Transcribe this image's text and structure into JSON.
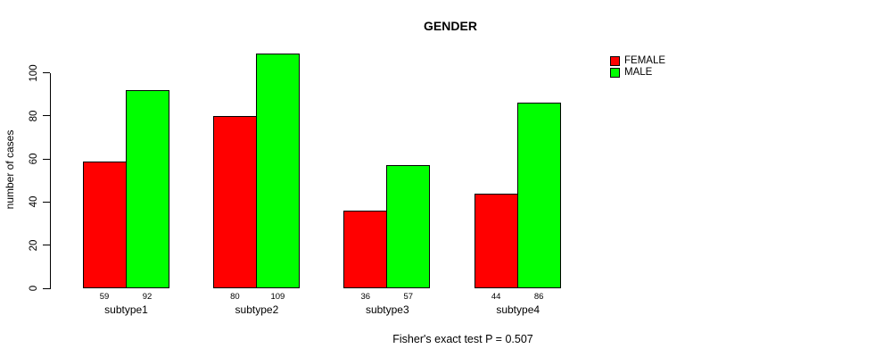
{
  "title": "GENDER",
  "footer": "Fisher's exact test P = 0.507",
  "y_axis_title": "number of cases",
  "chart_data": {
    "type": "bar",
    "title": "GENDER",
    "categories": [
      "subtype1",
      "subtype2",
      "subtype3",
      "subtype4"
    ],
    "series": [
      {
        "name": "FEMALE",
        "color": "#FF0000",
        "values": [
          59,
          80,
          36,
          44
        ]
      },
      {
        "name": "MALE",
        "color": "#00FF00",
        "values": [
          92,
          109,
          57,
          86
        ]
      }
    ],
    "bar_value_labels": [
      [
        59,
        92
      ],
      [
        80,
        109
      ],
      [
        36,
        57
      ],
      [
        44,
        86
      ]
    ],
    "xlabel": "",
    "ylabel": "number of cases",
    "yticks": [
      0,
      20,
      40,
      60,
      80,
      100
    ],
    "ylim": [
      0,
      112
    ],
    "grid": false,
    "bar_border_color": "#000000",
    "legend_position": "top-right",
    "legend_entries": [
      "FEMALE",
      "MALE"
    ],
    "annotation": "Fisher's exact test P = 0.507"
  }
}
